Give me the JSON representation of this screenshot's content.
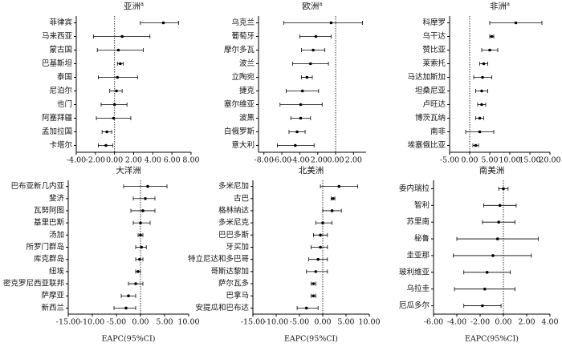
{
  "chart_data": [
    {
      "type": "forest",
      "title": "亚洲",
      "title_note": "a",
      "ref_line": 0,
      "categories": [
        "菲律宾",
        "马来西亚",
        "蒙古国",
        "巴基斯坦",
        "泰国",
        "尼泊尔",
        "也门",
        "阿塞拜疆",
        "孟加拉国",
        "卡塔尔"
      ],
      "values": [
        5.1,
        0.8,
        0.4,
        0.6,
        0.3,
        0.2,
        0.0,
        -0.1,
        -0.8,
        -0.9
      ],
      "lower": [
        2.7,
        -2.2,
        -1.8,
        0.3,
        -1.7,
        -0.5,
        -1.4,
        -1.9,
        -1.3,
        -1.7
      ],
      "upper": [
        6.7,
        3.7,
        3.0,
        0.9,
        2.4,
        0.8,
        1.3,
        1.7,
        -0.3,
        -0.2
      ],
      "xlim": [
        -4,
        8
      ],
      "xticks": [
        {
          "value": -4,
          "label": "-4.00"
        },
        {
          "value": -2,
          "label": "-2.00"
        },
        {
          "value": 0,
          "label": "0.00"
        },
        {
          "value": 2,
          "label": "2.00"
        },
        {
          "value": 4,
          "label": "4.00"
        },
        {
          "value": 6,
          "label": "6.00"
        },
        {
          "value": 8,
          "label": "8.00"
        }
      ]
    },
    {
      "type": "forest",
      "title": "欧洲",
      "title_note": "a",
      "ref_line": 0,
      "categories": [
        "乌克兰",
        "葡萄牙",
        "摩尔多瓦",
        "波兰",
        "立陶宛",
        "捷克",
        "塞尔维亚",
        "波黑",
        "白俄罗斯",
        "意大利"
      ],
      "values": [
        -0.5,
        -2.2,
        -2.5,
        -2.8,
        -3.2,
        -3.7,
        -3.9,
        -3.9,
        -4.3,
        -4.5
      ],
      "lower": [
        -5.8,
        -4.0,
        -3.8,
        -4.8,
        -3.8,
        -5.5,
        -6.2,
        -5.0,
        -5.2,
        -6.5
      ],
      "upper": [
        3.0,
        -0.5,
        -1.2,
        -0.8,
        -2.6,
        -1.9,
        -1.5,
        -2.8,
        -3.4,
        -2.4
      ],
      "xlim": [
        -8.6,
        3.4
      ],
      "xticks": [
        {
          "value": -8,
          "label": "-8.00"
        },
        {
          "value": -6,
          "label": "-6.00"
        },
        {
          "value": -4,
          "label": "-4.00"
        },
        {
          "value": -2,
          "label": "-2.00"
        },
        {
          "value": 0,
          "label": "0.00"
        },
        {
          "value": 2,
          "label": "2.00"
        }
      ]
    },
    {
      "type": "forest",
      "title": "非洲",
      "title_note": "a",
      "ref_line": 0,
      "categories": [
        "科摩罗",
        "乌干达",
        "赞比亚",
        "莱索托",
        "马达加斯加",
        "坦桑尼亚",
        "卢旺达",
        "博茨瓦纳",
        "南非",
        "埃塞俄比亚"
      ],
      "values": [
        11.5,
        5.5,
        5.0,
        3.5,
        3.2,
        3.0,
        3.0,
        2.5,
        2.5,
        1.5
      ],
      "lower": [
        5.0,
        5.0,
        3.0,
        2.5,
        1.0,
        1.5,
        2.0,
        1.5,
        -1.0,
        0.8
      ],
      "upper": [
        18.0,
        6.0,
        7.0,
        4.5,
        5.5,
        4.5,
        4.0,
        3.5,
        6.0,
        2.2
      ],
      "xlim": [
        -5,
        20
      ],
      "xticks": [
        {
          "value": -5,
          "label": "-5.00"
        },
        {
          "value": 0,
          "label": "0.00"
        },
        {
          "value": 5,
          "label": "5.00"
        },
        {
          "value": 10,
          "label": "10.00"
        },
        {
          "value": 15,
          "label": "15.00"
        },
        {
          "value": 20,
          "label": "20.00"
        }
      ]
    },
    {
      "type": "forest",
      "title": "大洋洲",
      "ref_line": 0,
      "xlabel": "EAPC(95%CI)",
      "categories": [
        "巴布亚新几内亚",
        "斐济",
        "瓦努阿图",
        "基里巴斯",
        "汤加",
        "所罗门群岛",
        "库克群岛",
        "纽埃",
        "密克罗尼西亚联邦",
        "萨摩亚",
        "新西兰"
      ],
      "values": [
        1.5,
        1.0,
        0.5,
        0.0,
        0.0,
        0.2,
        -0.2,
        -0.5,
        -1.0,
        -2.5,
        -3.0
      ],
      "lower": [
        -3.5,
        -1.5,
        -2.0,
        -1.5,
        -0.5,
        -1.0,
        -1.0,
        -1.0,
        -2.5,
        -4.0,
        -5.5
      ],
      "upper": [
        5.5,
        3.0,
        3.0,
        2.0,
        0.5,
        1.2,
        0.5,
        0.0,
        0.5,
        -1.0,
        -1.0
      ],
      "xlim": [
        -15,
        10
      ],
      "xticks": [
        {
          "value": -15,
          "label": "-15.00"
        },
        {
          "value": -10,
          "label": "-10.00"
        },
        {
          "value": -5,
          "label": "-5.00"
        },
        {
          "value": 0,
          "label": "0.00"
        },
        {
          "value": 5,
          "label": "5.00"
        },
        {
          "value": 10,
          "label": "10.00"
        }
      ]
    },
    {
      "type": "forest",
      "title": "北美洲",
      "ref_line": 0,
      "xlabel": "EAPC(95%CI)",
      "categories": [
        "多米尼加",
        "古巴",
        "格林纳达",
        "多米尼克",
        "巴巴多斯",
        "牙买加",
        "特立尼达和多巴哥",
        "哥斯达黎加",
        "萨尔瓦多",
        "巴拿马",
        "安提瓜和巴布达"
      ],
      "values": [
        3.5,
        2.2,
        2.0,
        0.0,
        -0.5,
        -0.5,
        -1.0,
        -1.5,
        -2.0,
        -2.0,
        -3.5
      ],
      "lower": [
        -0.5,
        1.8,
        0.0,
        -1.5,
        -2.0,
        -2.5,
        -3.0,
        -3.5,
        -2.5,
        -2.5,
        -5.5
      ],
      "upper": [
        7.5,
        2.6,
        4.0,
        2.0,
        1.0,
        1.0,
        1.0,
        1.0,
        -1.5,
        -1.5,
        -1.0
      ],
      "xlim": [
        -15,
        10
      ],
      "xticks": [
        {
          "value": -15,
          "label": "-15.00"
        },
        {
          "value": -10,
          "label": "-10.00"
        },
        {
          "value": -5,
          "label": "-5.00"
        },
        {
          "value": 0,
          "label": "0.00"
        },
        {
          "value": 5,
          "label": "5.00"
        },
        {
          "value": 10,
          "label": "10.00"
        }
      ]
    },
    {
      "type": "forest",
      "title": "南美洲",
      "ref_line": 0,
      "xlabel": "EAPC(95%CI)",
      "categories": [
        "委内瑞拉",
        "智利",
        "苏里南",
        "秘鲁",
        "圭亚那",
        "玻利维亚",
        "乌拉圭",
        "厄瓜多尔"
      ],
      "values": [
        0.0,
        -0.3,
        -0.4,
        -0.5,
        -0.9,
        -1.4,
        -1.6,
        -1.8
      ],
      "lower": [
        -0.4,
        -1.7,
        -1.8,
        -4.0,
        -4.3,
        -3.4,
        -4.2,
        -3.4
      ],
      "upper": [
        0.4,
        1.1,
        1.0,
        3.0,
        2.4,
        0.6,
        1.0,
        -0.2
      ],
      "xlim": [
        -6,
        4
      ],
      "xticks": [
        {
          "value": -6,
          "label": "-6.00"
        },
        {
          "value": -4,
          "label": "-4.00"
        },
        {
          "value": -2,
          "label": "-2.00"
        },
        {
          "value": 0,
          "label": "0.00"
        },
        {
          "value": 2,
          "label": "2.00"
        },
        {
          "value": 4,
          "label": "4.00"
        }
      ]
    }
  ]
}
